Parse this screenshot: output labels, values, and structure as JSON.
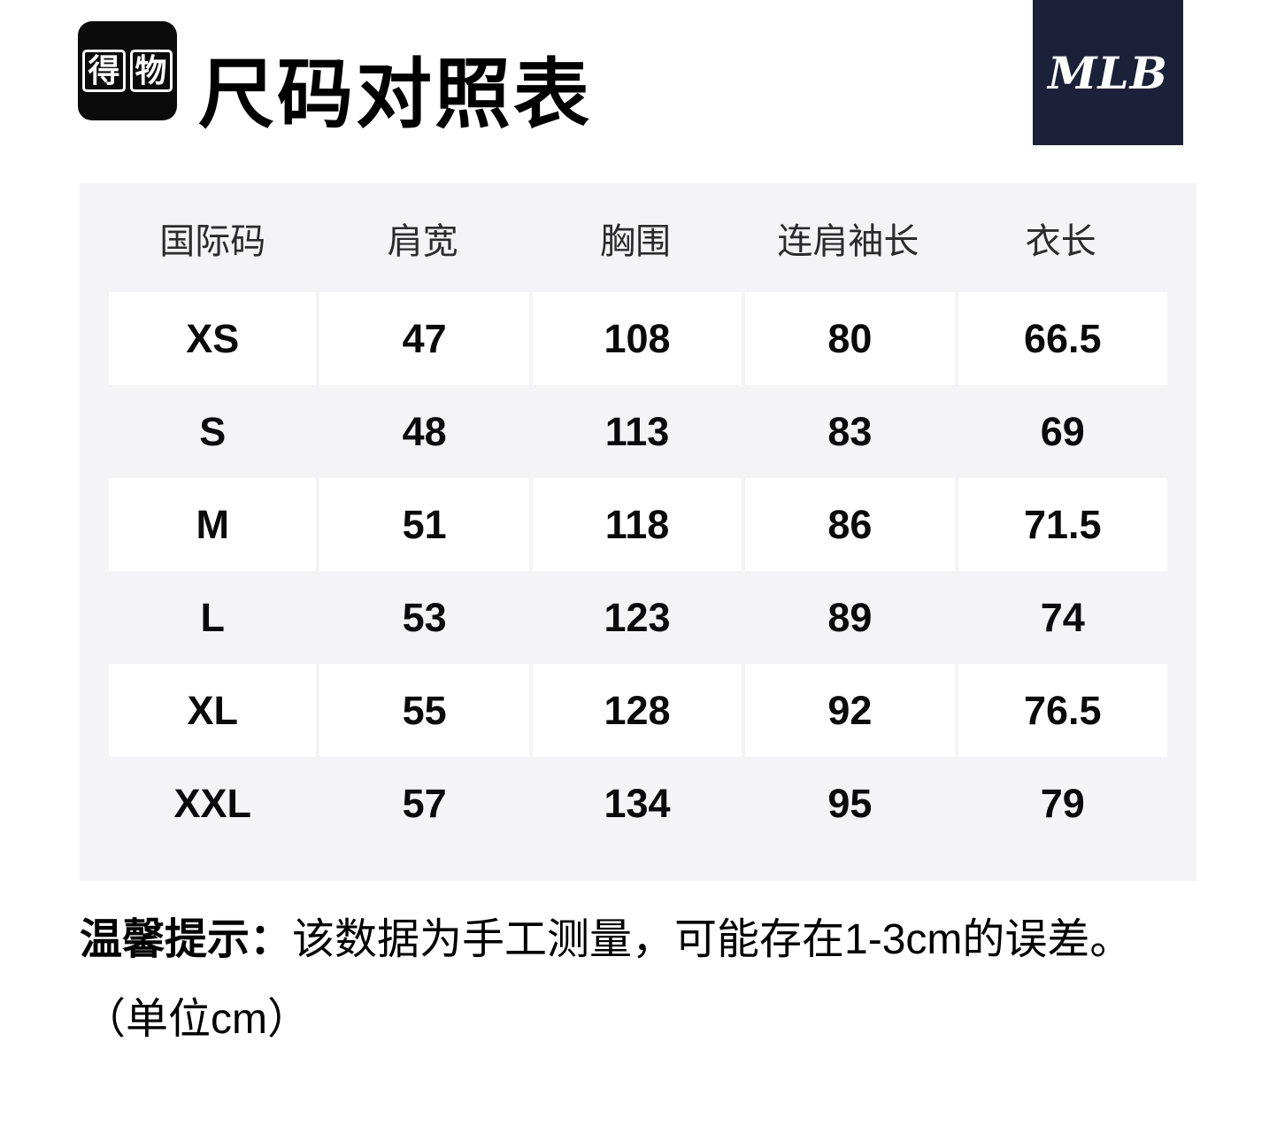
{
  "page": {
    "app_logo_chars": [
      "得",
      "物"
    ],
    "title": "尺码对照表",
    "brand_logo": "MLB",
    "note_label": "温馨提示：",
    "note_text": "该数据为手工测量，可能存在1-3cm的误差。",
    "unit_text": "（单位cm）"
  },
  "colors": {
    "brand_navy": "#1b2138",
    "table_background": "#f4f4f6",
    "row_white": "#ffffff"
  },
  "chart_data": {
    "type": "table",
    "title": "尺码对照表",
    "columns": [
      "国际码",
      "肩宽",
      "胸围",
      "连肩袖长",
      "衣长"
    ],
    "rows": [
      [
        "XS",
        "47",
        "108",
        "80",
        "66.5"
      ],
      [
        "S",
        "48",
        "113",
        "83",
        "69"
      ],
      [
        "M",
        "51",
        "118",
        "86",
        "71.5"
      ],
      [
        "L",
        "53",
        "123",
        "89",
        "74"
      ],
      [
        "XL",
        "55",
        "128",
        "92",
        "76.5"
      ],
      [
        "XXL",
        "57",
        "134",
        "95",
        "79"
      ]
    ],
    "unit": "cm",
    "layout": "alternating row stripes: white rows XS/M/XL on light gray panel"
  }
}
